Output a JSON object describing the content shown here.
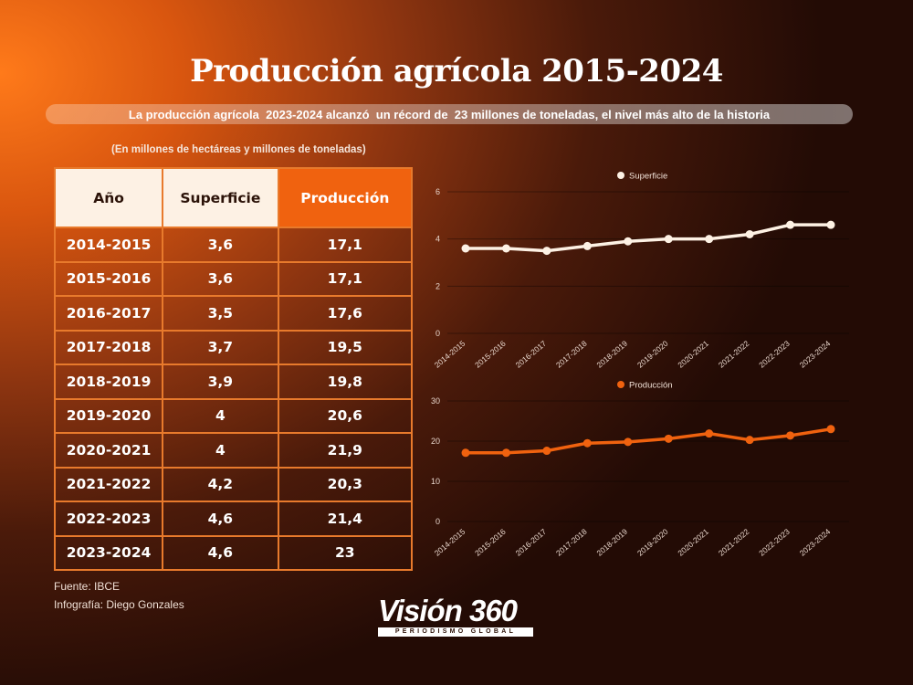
{
  "title": "Producción agrícola 2015-2024",
  "subtitle": "La producción agrícola  2023-2024 alcanzó  un récord de  23 millones de toneladas, el nivel más alto de la historia",
  "units_note": "(En millones de hectáreas y millones de  toneladas)",
  "table": {
    "headers": [
      "Año",
      "Superficie",
      "Producción"
    ],
    "rows": [
      [
        "2014-2015",
        "3,6",
        "17,1"
      ],
      [
        "2015-2016",
        "3,6",
        "17,1"
      ],
      [
        "2016-2017",
        "3,5",
        "17,6"
      ],
      [
        "2017-2018",
        "3,7",
        "19,5"
      ],
      [
        "2018-2019",
        "3,9",
        "19,8"
      ],
      [
        "2019-2020",
        "4",
        "20,6"
      ],
      [
        "2020-2021",
        "4",
        "21,9"
      ],
      [
        "2021-2022",
        "4,2",
        "20,3"
      ],
      [
        "2022-2023",
        "4,6",
        "21,4"
      ],
      [
        "2023-2024",
        "4,6",
        "23"
      ]
    ]
  },
  "footer": {
    "source": "Fuente: IBCE",
    "credit": "Infografía: Diego Gonzales"
  },
  "logo": {
    "main": "Visión 360",
    "sub": "PERIODISMO GLOBAL"
  },
  "colors": {
    "accent": "#f0620f",
    "line_superficie": "#fdf1e4",
    "line_produccion": "#f0620f"
  },
  "chart_data": [
    {
      "type": "line",
      "x": [
        "2014-2015",
        "2015-2016",
        "2016-2017",
        "2017-2018",
        "2018-2019",
        "2019-2020",
        "2020-2021",
        "2021-2022",
        "2022-2023",
        "2023-2024"
      ],
      "series": [
        {
          "name": "Superficie",
          "values": [
            3.6,
            3.6,
            3.5,
            3.7,
            3.9,
            4.0,
            4.0,
            4.2,
            4.6,
            4.6
          ]
        }
      ],
      "yticks": [
        "0",
        "2",
        "4",
        "6"
      ],
      "ylim": [
        0,
        6
      ],
      "grid": true,
      "legend": "top-center"
    },
    {
      "type": "line",
      "x": [
        "2014-2015",
        "2015-2016",
        "2016-2017",
        "2017-2018",
        "2018-2019",
        "2019-2020",
        "2020-2021",
        "2021-2022",
        "2022-2023",
        "2023-2024"
      ],
      "series": [
        {
          "name": "Producción",
          "values": [
            17.1,
            17.1,
            17.6,
            19.5,
            19.8,
            20.6,
            21.9,
            20.3,
            21.4,
            23.0
          ]
        }
      ],
      "yticks": [
        "0",
        "10",
        "20",
        "30"
      ],
      "ylim": [
        0,
        30
      ],
      "grid": true,
      "legend": "top-center"
    }
  ]
}
